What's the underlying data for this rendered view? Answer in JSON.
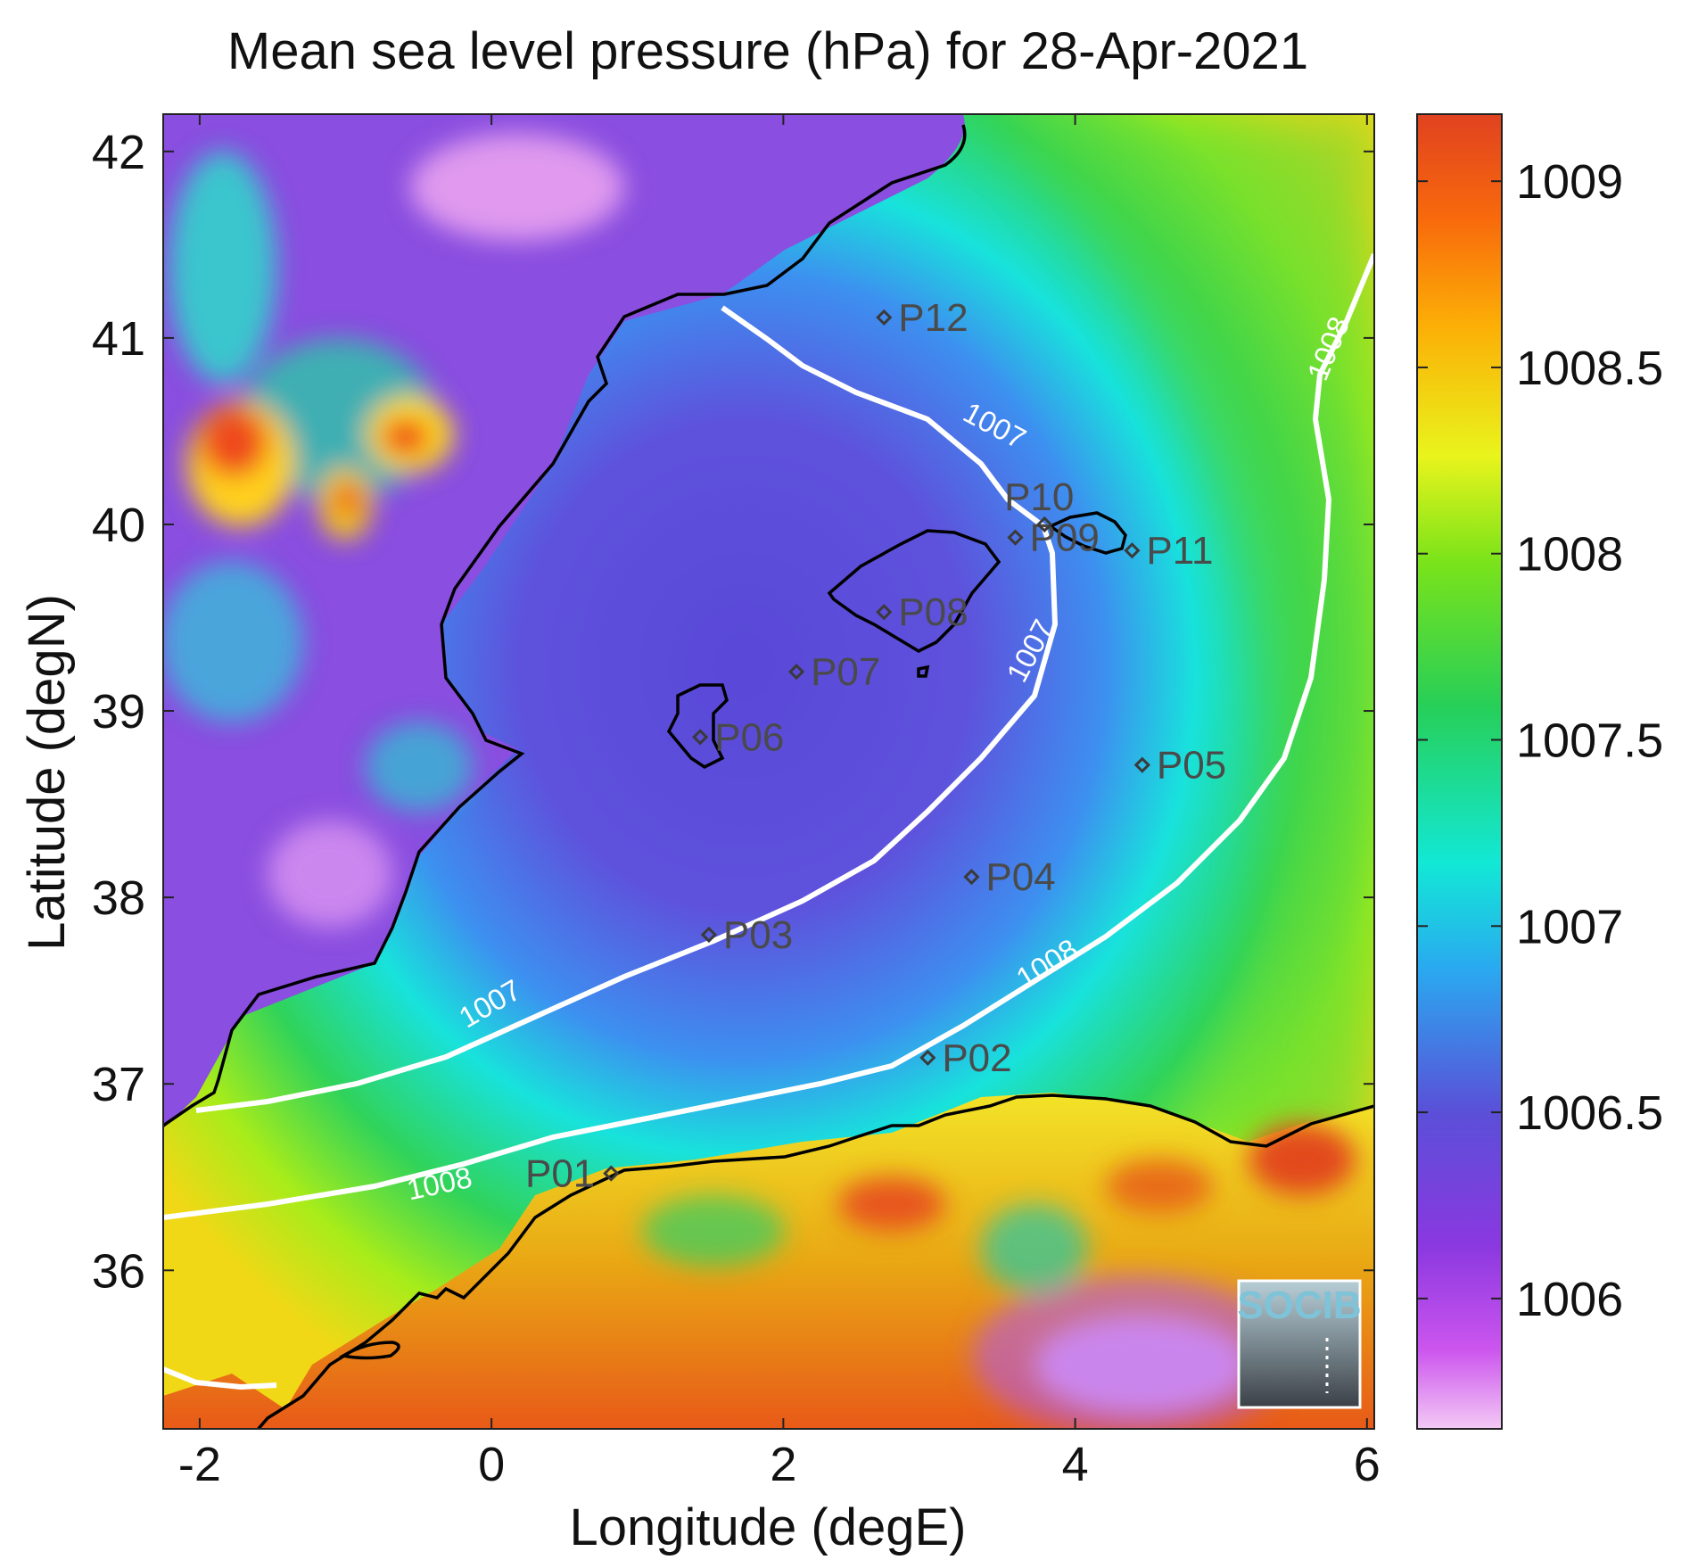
{
  "chart_data": {
    "type": "heatmap",
    "title": "Mean sea level pressure (hPa) for 28-Apr-2021",
    "xlabel": "Longitude (degE)",
    "ylabel": "Latitude (degN)",
    "xlim": [
      -2.25,
      6.05
    ],
    "ylim": [
      35.15,
      42.2
    ],
    "x_ticks": [
      -2,
      0,
      2,
      4,
      6
    ],
    "y_ticks": [
      36,
      37,
      38,
      39,
      40,
      41,
      42
    ],
    "colorbar": {
      "range": [
        1005.65,
        1009.18
      ],
      "ticks": [
        1006,
        1006.5,
        1007,
        1007.5,
        1008,
        1008.5,
        1009
      ],
      "tick_labels": [
        "1006",
        "1006.5",
        "1007",
        "1007.5",
        "1008",
        "1008.5",
        "1009"
      ]
    },
    "contours": [
      {
        "level": 1007,
        "label": "1007"
      },
      {
        "level": 1008,
        "label": "1008"
      }
    ],
    "stations": [
      {
        "name": "P01",
        "lon": 0.82,
        "lat": 36.52
      },
      {
        "name": "P02",
        "lon": 2.99,
        "lat": 37.14
      },
      {
        "name": "P03",
        "lon": 1.49,
        "lat": 37.8
      },
      {
        "name": "P04",
        "lon": 3.29,
        "lat": 38.11
      },
      {
        "name": "P05",
        "lon": 4.46,
        "lat": 38.71
      },
      {
        "name": "P06",
        "lon": 1.43,
        "lat": 38.86
      },
      {
        "name": "P07",
        "lon": 2.09,
        "lat": 39.21
      },
      {
        "name": "P08",
        "lon": 2.69,
        "lat": 39.53
      },
      {
        "name": "P09",
        "lon": 3.59,
        "lat": 39.93
      },
      {
        "name": "P10",
        "lon": 3.79,
        "lat": 40.0
      },
      {
        "name": "P11",
        "lon": 4.39,
        "lat": 39.86
      },
      {
        "name": "P12",
        "lon": 2.69,
        "lat": 41.11
      }
    ],
    "logo": "SOCIB"
  }
}
